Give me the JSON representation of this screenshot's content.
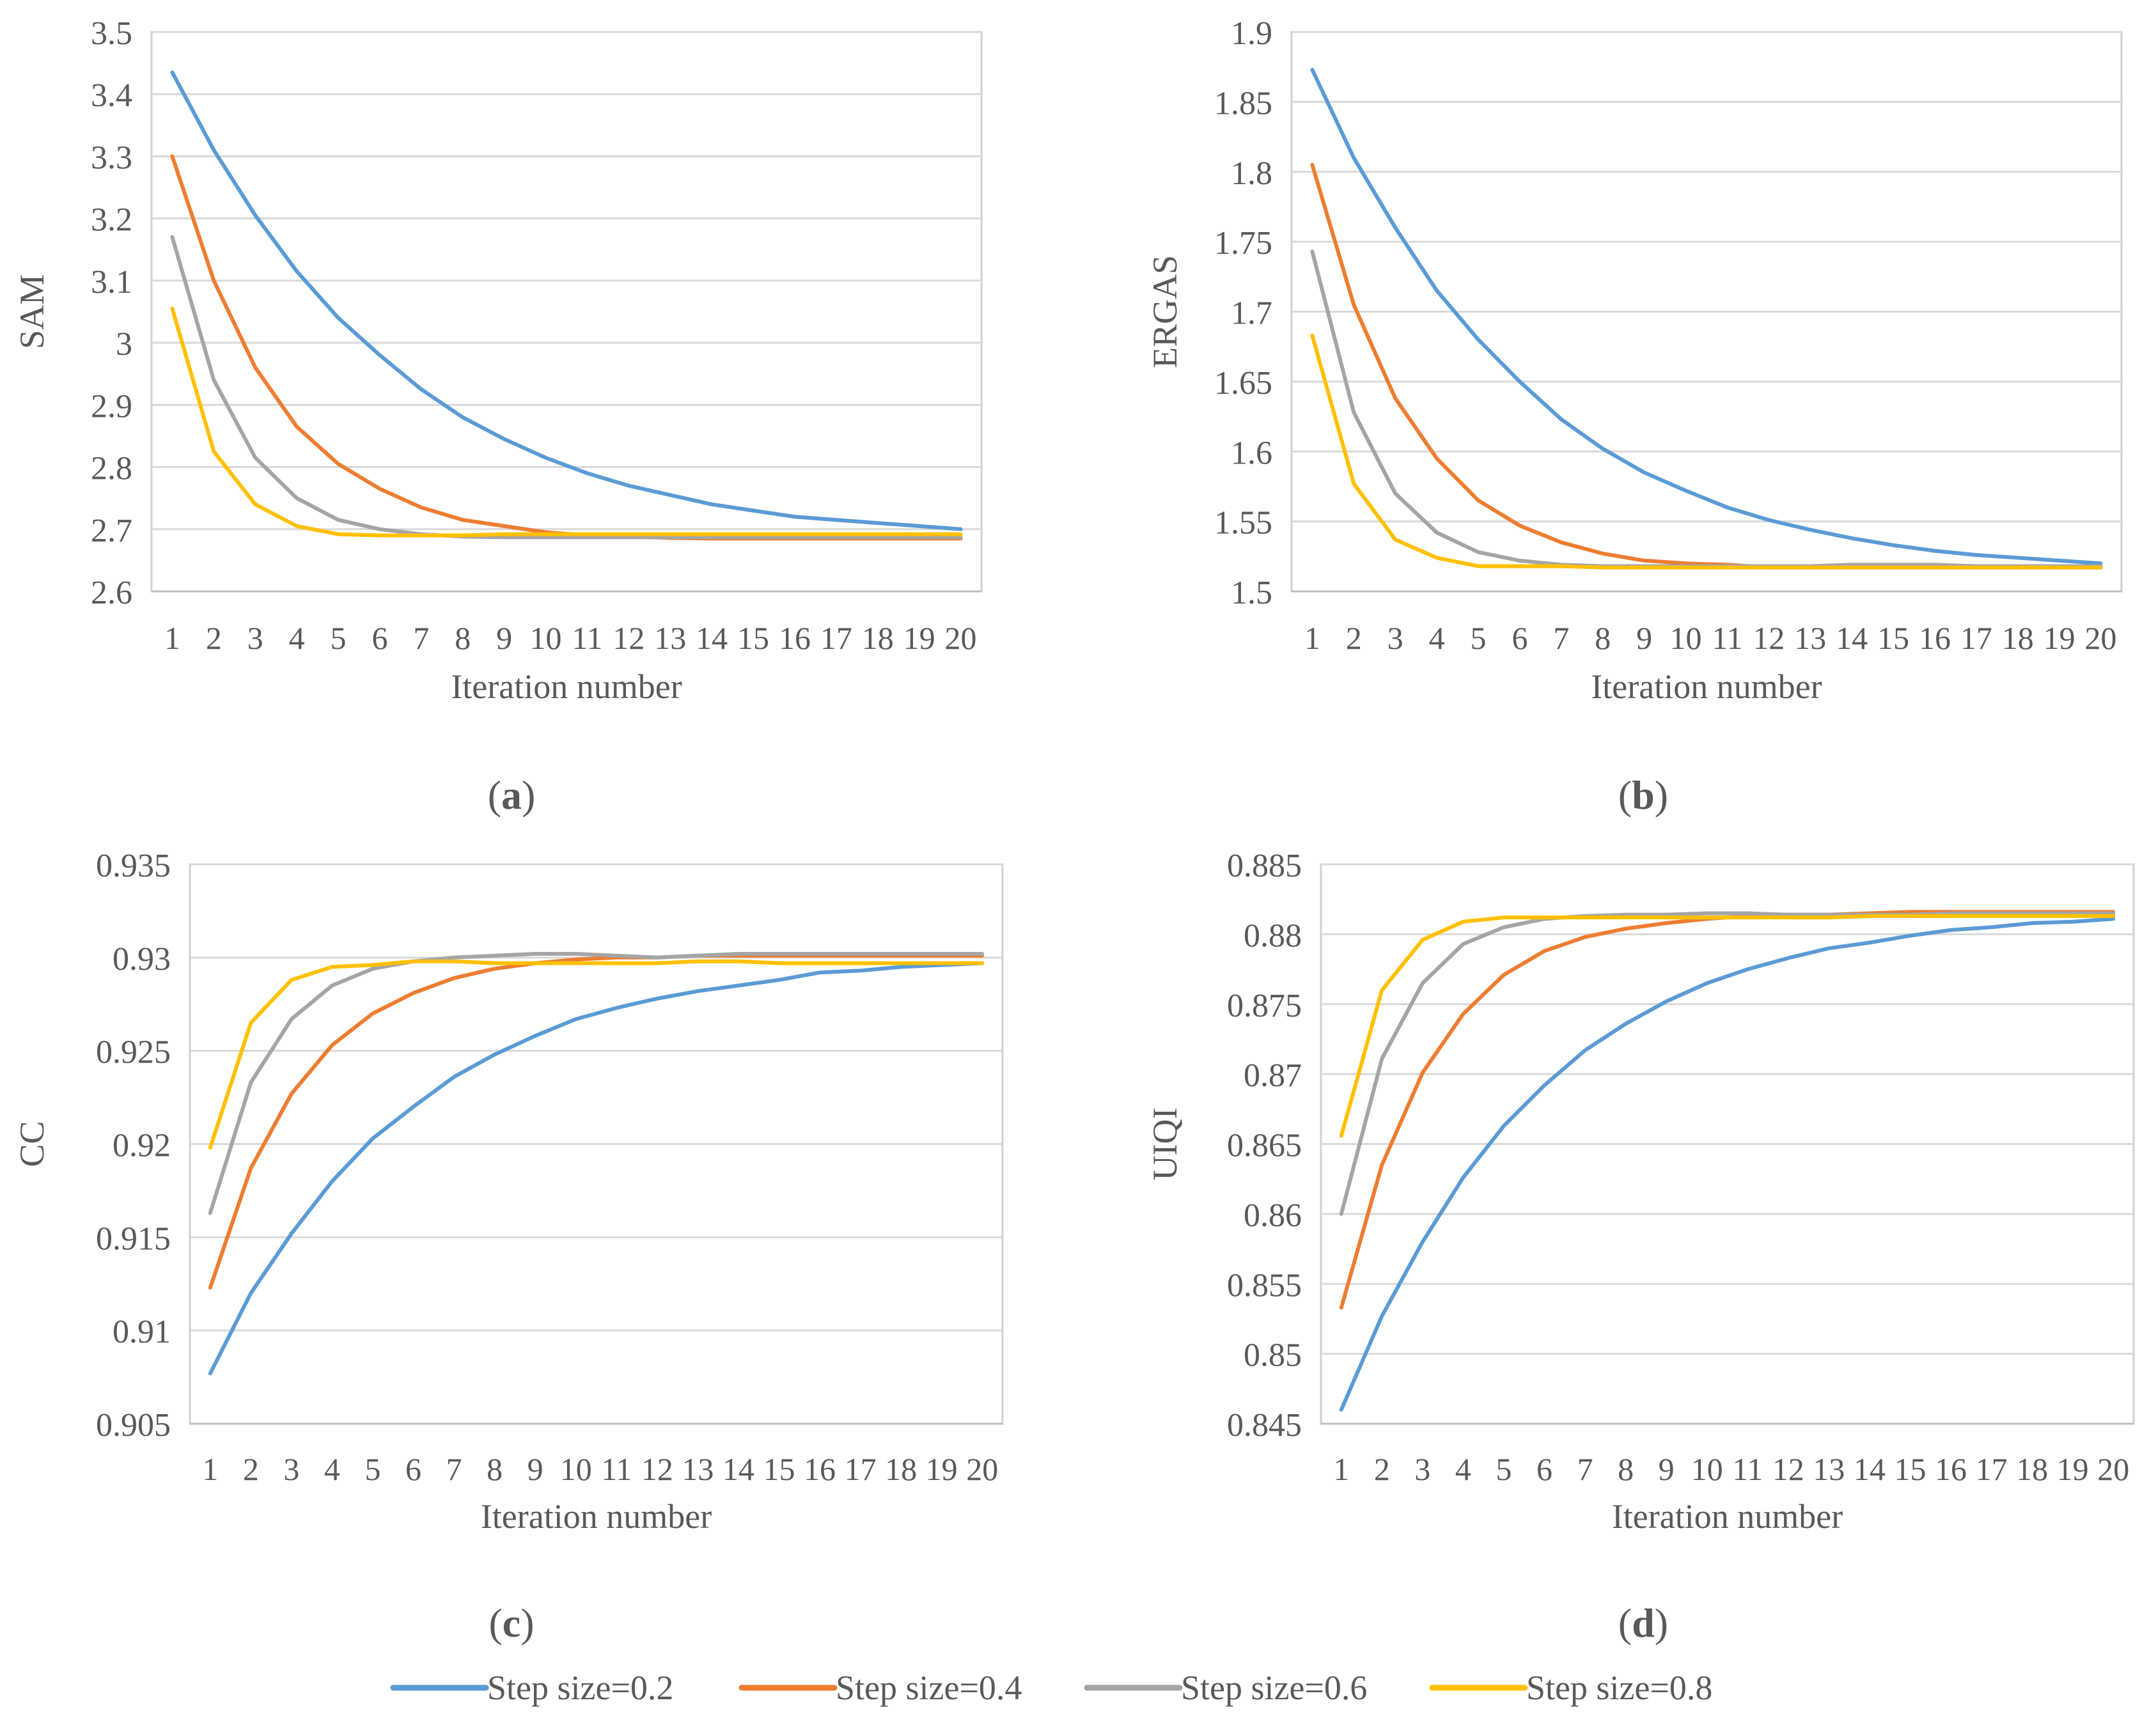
{
  "legend": [
    {
      "name": "Step size=0.2",
      "color": "#5B9BD5"
    },
    {
      "name": "Step size=0.4",
      "color": "#ED7D31"
    },
    {
      "name": "Step size=0.6",
      "color": "#A5A5A5"
    },
    {
      "name": "Step size=0.8",
      "color": "#FFC000"
    }
  ],
  "chart_data": [
    {
      "type": "line",
      "panel_label": "a",
      "ylabel": "SAM",
      "xlabel": "Iteration number",
      "categories": [
        "1",
        "2",
        "3",
        "4",
        "5",
        "6",
        "7",
        "8",
        "9",
        "10",
        "11",
        "12",
        "13",
        "14",
        "15",
        "16",
        "17",
        "18",
        "19",
        "20"
      ],
      "ylim": [
        2.6,
        3.5
      ],
      "yticks": [
        "3.5",
        "3.4",
        "3.3",
        "3.2",
        "3.1",
        "3",
        "2.9",
        "2.8",
        "2.7",
        "2.6"
      ],
      "series": [
        {
          "name": "Step size=0.2",
          "values": [
            3.435,
            3.31,
            3.205,
            3.115,
            3.04,
            2.98,
            2.925,
            2.88,
            2.845,
            2.815,
            2.79,
            2.77,
            2.755,
            2.74,
            2.73,
            2.72,
            2.715,
            2.71,
            2.705,
            2.7
          ]
        },
        {
          "name": "Step size=0.4",
          "values": [
            3.3,
            3.1,
            2.96,
            2.865,
            2.805,
            2.765,
            2.735,
            2.715,
            2.705,
            2.695,
            2.69,
            2.688,
            2.686,
            2.685,
            2.685,
            2.685,
            2.685,
            2.685,
            2.685,
            2.685
          ]
        },
        {
          "name": "Step size=0.6",
          "values": [
            3.17,
            2.94,
            2.815,
            2.75,
            2.715,
            2.7,
            2.692,
            2.688,
            2.687,
            2.687,
            2.687,
            2.687,
            2.687,
            2.687,
            2.687,
            2.687,
            2.687,
            2.687,
            2.687,
            2.687
          ]
        },
        {
          "name": "Step size=0.8",
          "values": [
            3.055,
            2.825,
            2.74,
            2.705,
            2.692,
            2.69,
            2.69,
            2.69,
            2.692,
            2.692,
            2.692,
            2.692,
            2.692,
            2.692,
            2.692,
            2.692,
            2.692,
            2.692,
            2.692,
            2.692
          ]
        }
      ]
    },
    {
      "type": "line",
      "panel_label": "b",
      "ylabel": "ERGAS",
      "xlabel": "Iteration number",
      "categories": [
        "1",
        "2",
        "3",
        "4",
        "5",
        "6",
        "7",
        "8",
        "9",
        "10",
        "11",
        "12",
        "13",
        "14",
        "15",
        "16",
        "17",
        "18",
        "19",
        "20"
      ],
      "ylim": [
        1.5,
        1.9
      ],
      "yticks": [
        "1.9",
        "1.85",
        "1.8",
        "1.75",
        "1.7",
        "1.65",
        "1.6",
        "1.55",
        "1.5"
      ],
      "series": [
        {
          "name": "Step size=0.2",
          "values": [
            1.873,
            1.81,
            1.76,
            1.715,
            1.68,
            1.65,
            1.623,
            1.602,
            1.585,
            1.572,
            1.56,
            1.551,
            1.544,
            1.538,
            1.533,
            1.529,
            1.526,
            1.524,
            1.522,
            1.52
          ]
        },
        {
          "name": "Step size=0.4",
          "values": [
            1.805,
            1.705,
            1.638,
            1.595,
            1.565,
            1.547,
            1.535,
            1.527,
            1.522,
            1.52,
            1.519,
            1.517,
            1.517,
            1.517,
            1.517,
            1.517,
            1.517,
            1.517,
            1.517,
            1.517
          ]
        },
        {
          "name": "Step size=0.6",
          "values": [
            1.743,
            1.628,
            1.57,
            1.542,
            1.528,
            1.522,
            1.519,
            1.518,
            1.518,
            1.518,
            1.518,
            1.518,
            1.518,
            1.519,
            1.519,
            1.519,
            1.518,
            1.518,
            1.518,
            1.518
          ]
        },
        {
          "name": "Step size=0.8",
          "values": [
            1.683,
            1.577,
            1.537,
            1.524,
            1.518,
            1.518,
            1.518,
            1.517,
            1.517,
            1.517,
            1.517,
            1.517,
            1.517,
            1.517,
            1.517,
            1.517,
            1.517,
            1.517,
            1.517,
            1.517
          ]
        }
      ]
    },
    {
      "type": "line",
      "panel_label": "c",
      "ylabel": "CC",
      "xlabel": "Iteration number",
      "categories": [
        "1",
        "2",
        "3",
        "4",
        "5",
        "6",
        "7",
        "8",
        "9",
        "10",
        "11",
        "12",
        "13",
        "14",
        "15",
        "16",
        "17",
        "18",
        "19",
        "20"
      ],
      "ylim": [
        0.905,
        0.935
      ],
      "yticks": [
        "0.935",
        "0.93",
        "0.925",
        "0.92",
        "0.915",
        "0.91",
        "0.905"
      ],
      "series": [
        {
          "name": "Step size=0.2",
          "values": [
            0.9077,
            0.912,
            0.9152,
            0.918,
            0.9203,
            0.922,
            0.9236,
            0.9248,
            0.9258,
            0.9267,
            0.9273,
            0.9278,
            0.9282,
            0.9285,
            0.9288,
            0.9292,
            0.9293,
            0.9295,
            0.9296,
            0.9297
          ]
        },
        {
          "name": "Step size=0.4",
          "values": [
            0.9123,
            0.9187,
            0.9227,
            0.9253,
            0.927,
            0.9281,
            0.9289,
            0.9294,
            0.9297,
            0.9299,
            0.93,
            0.93,
            0.9301,
            0.9301,
            0.9301,
            0.9301,
            0.9301,
            0.9301,
            0.9301,
            0.9301
          ]
        },
        {
          "name": "Step size=0.6",
          "values": [
            0.9163,
            0.9233,
            0.9267,
            0.9285,
            0.9294,
            0.9298,
            0.93,
            0.9301,
            0.9302,
            0.9302,
            0.9301,
            0.93,
            0.9301,
            0.9302,
            0.9302,
            0.9302,
            0.9302,
            0.9302,
            0.9302,
            0.9302
          ]
        },
        {
          "name": "Step size=0.8",
          "values": [
            0.9198,
            0.9265,
            0.9288,
            0.9295,
            0.9296,
            0.9298,
            0.9298,
            0.9297,
            0.9297,
            0.9297,
            0.9297,
            0.9297,
            0.9298,
            0.9298,
            0.9297,
            0.9297,
            0.9297,
            0.9297,
            0.9297,
            0.9297
          ]
        }
      ]
    },
    {
      "type": "line",
      "panel_label": "d",
      "ylabel": "UIQI",
      "xlabel": "Iteration number",
      "categories": [
        "1",
        "2",
        "3",
        "4",
        "5",
        "6",
        "7",
        "8",
        "9",
        "10",
        "11",
        "12",
        "13",
        "14",
        "15",
        "16",
        "17",
        "18",
        "19",
        "20"
      ],
      "ylim": [
        0.845,
        0.885
      ],
      "yticks": [
        "0.885",
        "0.88",
        "0.875",
        "0.87",
        "0.865",
        "0.86",
        "0.855",
        "0.85",
        "0.845"
      ],
      "series": [
        {
          "name": "Step size=0.2",
          "values": [
            0.846,
            0.8527,
            0.858,
            0.8626,
            0.8663,
            0.8692,
            0.8717,
            0.8736,
            0.8752,
            0.8765,
            0.8775,
            0.8783,
            0.879,
            0.8794,
            0.8799,
            0.8803,
            0.8805,
            0.8808,
            0.8809,
            0.8811
          ]
        },
        {
          "name": "Step size=0.4",
          "values": [
            0.8533,
            0.8635,
            0.8701,
            0.8743,
            0.8771,
            0.8788,
            0.8798,
            0.8804,
            0.8808,
            0.8811,
            0.8813,
            0.8814,
            0.8814,
            0.8815,
            0.8816,
            0.8816,
            0.8816,
            0.8816,
            0.8816,
            0.8816
          ]
        },
        {
          "name": "Step size=0.6",
          "values": [
            0.86,
            0.8711,
            0.8765,
            0.8793,
            0.8805,
            0.8811,
            0.8813,
            0.8814,
            0.8814,
            0.8815,
            0.8815,
            0.8814,
            0.8814,
            0.8814,
            0.8814,
            0.8815,
            0.8815,
            0.8815,
            0.8815,
            0.8815
          ]
        },
        {
          "name": "Step size=0.8",
          "values": [
            0.8656,
            0.876,
            0.8796,
            0.8809,
            0.8812,
            0.8812,
            0.8812,
            0.8812,
            0.8812,
            0.8812,
            0.8812,
            0.8812,
            0.8812,
            0.8813,
            0.8813,
            0.8813,
            0.8813,
            0.8813,
            0.8813,
            0.8813
          ]
        }
      ]
    }
  ]
}
